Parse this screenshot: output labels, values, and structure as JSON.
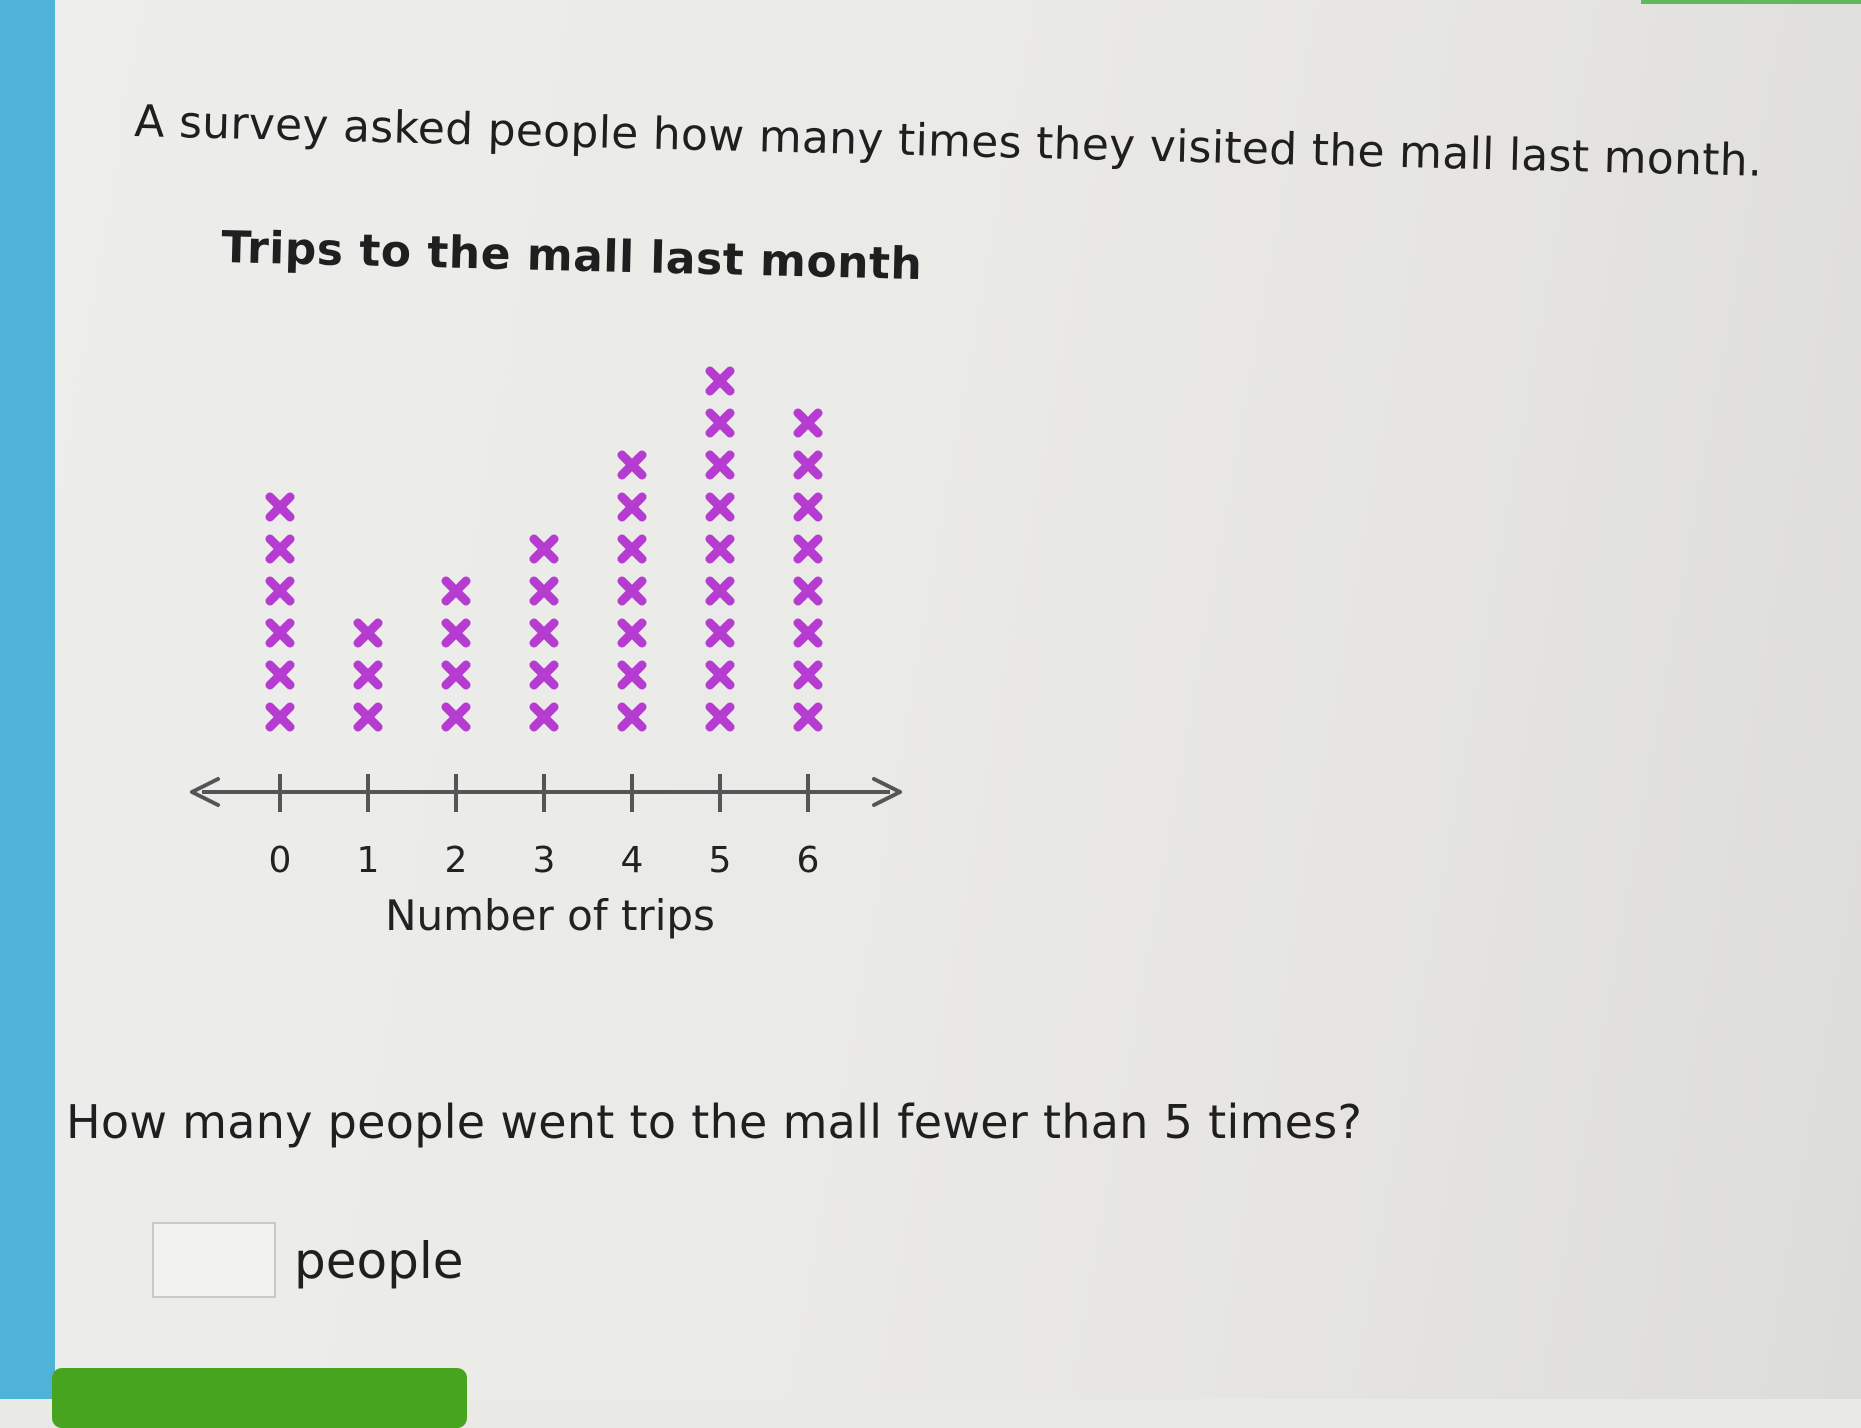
{
  "question": {
    "intro": "A survey asked people how many times they visited the mall last month.",
    "prompt": "How many people went to the mall fewer than 5 times?",
    "answer_value": "",
    "unit_label": "people"
  },
  "colors": {
    "marker": "#b53bd1",
    "axis": "#555555",
    "sidebar": "#4fb3d9",
    "submit": "#47a41f"
  },
  "submit": {
    "label": ""
  },
  "chart_data": {
    "type": "scatter",
    "subtype": "dot-plot",
    "title": "Trips to the mall last month",
    "xlabel": "Number of trips",
    "ylabel": "",
    "x": [
      0,
      1,
      2,
      3,
      4,
      5,
      6
    ],
    "tick_labels": [
      "0",
      "1",
      "2",
      "3",
      "4",
      "5",
      "6"
    ],
    "counts": [
      6,
      3,
      4,
      5,
      7,
      9,
      8
    ],
    "marker": "x",
    "xlim": [
      0,
      6
    ],
    "grid": false,
    "legend": "none"
  }
}
